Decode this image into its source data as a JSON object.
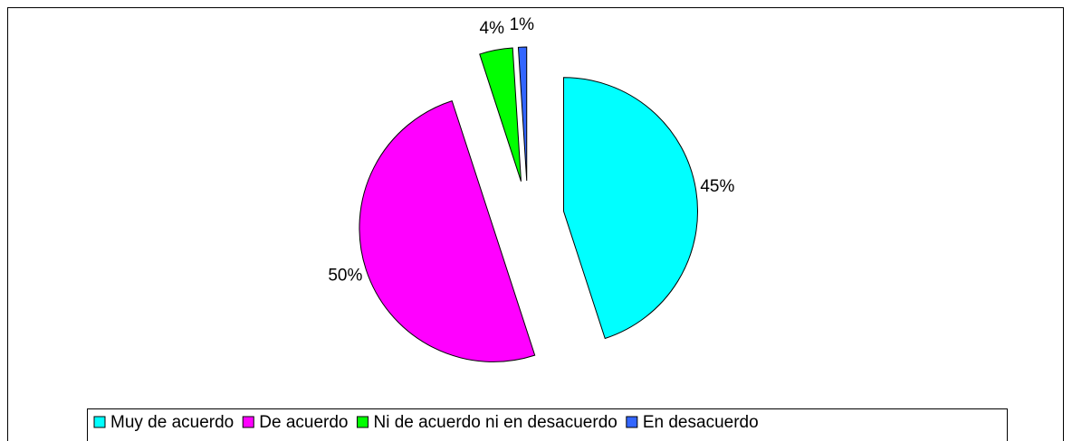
{
  "chart_data": {
    "type": "pie",
    "categories": [
      "Muy de acuerdo",
      "De acuerdo",
      "Ni de acuerdo ni en desacuerdo",
      "En desacuerdo"
    ],
    "values": [
      45,
      50,
      4,
      1
    ],
    "value_labels": [
      "45%",
      "50%",
      "4%",
      "1%"
    ],
    "colors": [
      "#00ffff",
      "#ff00ff",
      "#00ff00",
      "#3366ff"
    ],
    "exploded": true,
    "legend": "bottom"
  }
}
